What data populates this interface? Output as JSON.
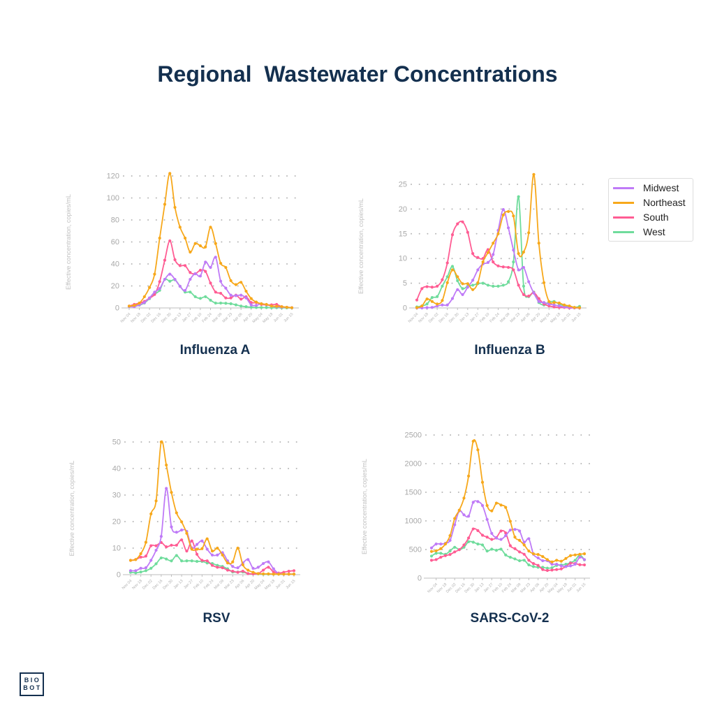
{
  "title": "Regional  Wastewater Concentrations",
  "logo": {
    "line1": "BIO",
    "line2": "BOT"
  },
  "legend": [
    {
      "name": "Midwest",
      "color": "#bf7af7"
    },
    {
      "name": "Northeast",
      "color": "#f7a81b"
    },
    {
      "name": "South",
      "color": "#ff5c93"
    },
    {
      "name": "West",
      "color": "#6fdc9c"
    }
  ],
  "chart_data": [
    {
      "type": "line",
      "title": "Influenza A",
      "ylabel": "Effective concentration, copies/mL",
      "ylim": [
        0,
        120
      ],
      "yticks": [
        0,
        20,
        40,
        60,
        80,
        100,
        120
      ],
      "grid": "horizontal dotted",
      "xticks": [
        "Nov 04",
        "Nov 18",
        "Dec 02",
        "Dec 16",
        "Dec 30",
        "Jan 13",
        "Jan 27",
        "Feb 10",
        "Feb 24",
        "Mar 09",
        "Mar 23",
        "Apr 06",
        "Apr 20",
        "May 04",
        "May 18",
        "Jun 01",
        "Jun 15"
      ],
      "x": [
        "Nov 04",
        "Nov 11",
        "Nov 18",
        "Nov 25",
        "Dec 02",
        "Dec 09",
        "Dec 16",
        "Dec 23",
        "Dec 30",
        "Jan 06",
        "Jan 13",
        "Jan 20",
        "Jan 27",
        "Feb 03",
        "Feb 10",
        "Feb 17",
        "Feb 24",
        "Mar 02",
        "Mar 09",
        "Mar 16",
        "Mar 23",
        "Mar 30",
        "Apr 06",
        "Apr 13",
        "Apr 20",
        "Apr 27",
        "May 04",
        "May 11",
        "May 18",
        "May 25",
        "Jun 01",
        "Jun 08",
        "Jun 15"
      ],
      "series": [
        {
          "name": "Midwest",
          "values": [
            1.3,
            1.1,
            2.8,
            4.9,
            9.1,
            14.4,
            17.6,
            26,
            30.7,
            26,
            19.7,
            15.9,
            26,
            31.1,
            29,
            41.7,
            36.8,
            46.1,
            24.3,
            18,
            11.6,
            11.2,
            11.6,
            9.1,
            2.8,
            2.3,
            3.8,
            2.8,
            1.7,
            1.1,
            0.6,
            0.6,
            0.2
          ]
        },
        {
          "name": "Northeast",
          "values": [
            1.7,
            2.3,
            4.4,
            10.2,
            18.6,
            30.7,
            63.5,
            94.2,
            122.3,
            91.4,
            73.4,
            63.5,
            50.8,
            58.6,
            56.5,
            55.5,
            73.4,
            58.6,
            40.6,
            36.8,
            24.8,
            21.2,
            23.3,
            15.2,
            8.5,
            5.3,
            3.8,
            3.2,
            1.7,
            1.5,
            1.1,
            0.6,
            0.2
          ]
        },
        {
          "name": "South",
          "values": [
            1.7,
            3.2,
            4.4,
            5.9,
            9.1,
            12.3,
            23.9,
            43.4,
            61,
            43.8,
            38.5,
            38.5,
            32.2,
            31.1,
            34.3,
            33.2,
            22.6,
            14.4,
            13.3,
            9.1,
            9.1,
            11.6,
            8,
            10.2,
            4.9,
            4.9,
            3.2,
            2.8,
            2.8,
            3.2,
            1.1,
            0.6,
            0.2
          ]
        },
        {
          "name": "West",
          "values": [
            1.3,
            1.5,
            2.5,
            4.5,
            8.5,
            12.5,
            16,
            26,
            24.3,
            25.6,
            19.7,
            14.4,
            14.4,
            10.2,
            8.7,
            10.2,
            7,
            4.4,
            4.4,
            4.2,
            3.8,
            2.8,
            1.7,
            1.1,
            0.6,
            0.4,
            0.4,
            0.3,
            0.2,
            0.2,
            0.1,
            0.1,
            0
          ]
        }
      ]
    },
    {
      "type": "line",
      "title": "Influenza B",
      "ylabel": "Effective concentration, copies/mL",
      "ylim": [
        0,
        25
      ],
      "yticks": [
        0,
        5,
        10,
        15,
        20,
        25
      ],
      "grid": "horizontal dotted",
      "xticks": [
        "Nov 04",
        "Nov 18",
        "Dec 02",
        "Dec 16",
        "Dec 30",
        "Jan 13",
        "Jan 27",
        "Feb 10",
        "Feb 24",
        "Mar 09",
        "Mar 23",
        "Apr 06",
        "Apr 20",
        "May 04",
        "May 18",
        "Jun 01",
        "Jun 15"
      ],
      "x": [
        "Nov 04",
        "Nov 11",
        "Nov 18",
        "Nov 25",
        "Dec 02",
        "Dec 09",
        "Dec 16",
        "Dec 23",
        "Dec 30",
        "Jan 06",
        "Jan 13",
        "Jan 20",
        "Jan 27",
        "Feb 03",
        "Feb 10",
        "Feb 17",
        "Feb 24",
        "Mar 02",
        "Mar 09",
        "Mar 16",
        "Mar 23",
        "Mar 30",
        "Apr 06",
        "Apr 13",
        "Apr 20",
        "Apr 27",
        "May 04",
        "May 11",
        "May 18",
        "May 25",
        "Jun 01",
        "Jun 08",
        "Jun 15"
      ],
      "series": [
        {
          "name": "Midwest",
          "values": [
            0,
            0,
            0.05,
            0.1,
            0.4,
            0.6,
            0.6,
            1.9,
            3.7,
            2.7,
            4.2,
            5.6,
            7.7,
            8.9,
            9.2,
            10.8,
            15.7,
            19.9,
            16.2,
            11.7,
            7.7,
            8.2,
            5.3,
            3,
            1.3,
            1.1,
            0.8,
            0.6,
            0.4,
            0.2,
            0.1,
            0.05,
            0
          ]
        },
        {
          "name": "Northeast",
          "values": [
            0.05,
            0.4,
            1.8,
            1.3,
            0.8,
            1.5,
            5.1,
            7.7,
            6.3,
            4.9,
            4.9,
            3.7,
            5.1,
            9.3,
            11.2,
            13.1,
            15,
            18.8,
            19.5,
            18.6,
            11,
            11.3,
            15.2,
            27,
            13.1,
            5.1,
            1.3,
            1.1,
            1,
            0.6,
            0.4,
            0.1,
            0.05
          ]
        },
        {
          "name": "South",
          "values": [
            1.6,
            3.9,
            4.3,
            4.2,
            4.4,
            5.7,
            9.1,
            14.8,
            17,
            17.4,
            15.3,
            11,
            10.2,
            10,
            11.8,
            9.3,
            8.5,
            8.3,
            8.2,
            7.7,
            4.6,
            2.7,
            2.4,
            3.1,
            1.9,
            0.8,
            0.4,
            0.2,
            0.1,
            0.1,
            0,
            0,
            0
          ]
        },
        {
          "name": "West",
          "values": [
            0.2,
            0.4,
            0.8,
            2.1,
            2.3,
            4.4,
            6.3,
            8.4,
            5.5,
            3.9,
            4.4,
            4.6,
            4.9,
            5,
            4.6,
            4.4,
            4.4,
            4.6,
            5.3,
            9.3,
            22.5,
            4.4,
            2.3,
            3.2,
            1.1,
            0.6,
            1.2,
            1.3,
            0.8,
            0.4,
            0.2,
            0.1,
            0.3
          ]
        }
      ]
    },
    {
      "type": "line",
      "title": "RSV",
      "ylabel": "Effective concentration, copies/mL",
      "ylim": [
        0,
        50
      ],
      "yticks": [
        0,
        10,
        20,
        30,
        40,
        50
      ],
      "grid": "horizontal dotted",
      "xticks": [
        "Nov 04",
        "Nov 18",
        "Dec 02",
        "Dec 16",
        "Dec 30",
        "Jan 13",
        "Jan 27",
        "Feb 10",
        "Feb 24",
        "Mar 09",
        "Mar 23",
        "Apr 06",
        "Apr 20",
        "May 04",
        "May 18",
        "Jun 01",
        "Jun 15"
      ],
      "x": [
        "Nov 04",
        "Nov 11",
        "Nov 18",
        "Nov 25",
        "Dec 02",
        "Dec 09",
        "Dec 16",
        "Dec 23",
        "Dec 30",
        "Jan 06",
        "Jan 13",
        "Jan 20",
        "Jan 27",
        "Feb 03",
        "Feb 10",
        "Feb 17",
        "Feb 24",
        "Mar 02",
        "Mar 09",
        "Mar 16",
        "Mar 23",
        "Mar 30",
        "Apr 06",
        "Apr 13",
        "Apr 20",
        "Apr 27",
        "May 04",
        "May 11",
        "May 18",
        "May 25",
        "Jun 01",
        "Jun 08",
        "Jun 15"
      ],
      "series": [
        {
          "name": "Midwest",
          "values": [
            1.5,
            1.5,
            2.4,
            2.6,
            5.4,
            9.2,
            14.4,
            32.5,
            18,
            16,
            16.8,
            16.3,
            10.1,
            11.4,
            12.7,
            9.6,
            7.4,
            7.4,
            8.3,
            5.2,
            3.1,
            2.6,
            4.4,
            5.7,
            2.4,
            2.8,
            4.2,
            4.8,
            2.2,
            0.4,
            0.2,
            0.2,
            0.2
          ]
        },
        {
          "name": "Northeast",
          "values": [
            5.4,
            5.7,
            7.9,
            12.2,
            22.9,
            27.8,
            50,
            41.3,
            31,
            23.3,
            19.9,
            15.6,
            9.6,
            9.6,
            9.8,
            13.5,
            8.9,
            10,
            7.4,
            4.4,
            4.8,
            10,
            3.7,
            1.7,
            0.9,
            0.4,
            0.3,
            0.3,
            0.2,
            0.2,
            0.2,
            0.2,
            0.2
          ]
        },
        {
          "name": "South",
          "values": [
            5.4,
            5.7,
            6.6,
            7,
            10.9,
            10.9,
            12.1,
            10.5,
            11.1,
            11.1,
            13.1,
            8.9,
            12.7,
            7.7,
            5.4,
            5.2,
            3.5,
            2.8,
            2.6,
            1.7,
            1.3,
            0.9,
            1.3,
            0.4,
            0.3,
            0.4,
            1.7,
            2.8,
            1,
            0.6,
            0.9,
            1.3,
            1.5
          ]
        },
        {
          "name": "West",
          "values": [
            0.9,
            0.7,
            1,
            1.5,
            2.4,
            4.1,
            6.3,
            5.9,
            5.2,
            7.2,
            5.2,
            5.2,
            5.2,
            5,
            5,
            4.4,
            4.2,
            3.5,
            3.1,
            2.2,
            1,
            1,
            1,
            0.4,
            0.3,
            0.3,
            0.2,
            0.2,
            0.2,
            0.2,
            0.2,
            0.2,
            0.2
          ]
        }
      ]
    },
    {
      "type": "line",
      "title": "SARS-CoV-2",
      "ylabel": "Effective concentration, copies/mL",
      "ylim": [
        0,
        2500
      ],
      "yticks": [
        0,
        500,
        1000,
        1500,
        2000,
        2500
      ],
      "grid": "horizontal dotted",
      "xticks": [
        "Nov 04",
        "Nov 18",
        "Dec 02",
        "Dec 16",
        "Dec 30",
        "Jan 13",
        "Jan 27",
        "Feb 10",
        "Feb 24",
        "Mar 09",
        "Mar 23",
        "Apr 06",
        "Apr 20",
        "May 04",
        "May 18",
        "Jun 01",
        "Jun 15"
      ],
      "x": [
        "Oct 28",
        "Nov 04",
        "Nov 11",
        "Nov 18",
        "Nov 25",
        "Dec 02",
        "Dec 09",
        "Dec 16",
        "Dec 23",
        "Dec 30",
        "Jan 06",
        "Jan 13",
        "Jan 20",
        "Jan 27",
        "Feb 03",
        "Feb 10",
        "Feb 17",
        "Feb 24",
        "Mar 02",
        "Mar 09",
        "Mar 16",
        "Mar 23",
        "Mar 30",
        "Apr 06",
        "Apr 13",
        "Apr 20",
        "Apr 27",
        "May 04",
        "May 11",
        "May 18",
        "May 25",
        "Jun 01",
        "Jun 08",
        "Jun 15"
      ],
      "series": [
        {
          "name": "Midwest",
          "values": [
            527,
            596,
            596,
            608,
            660,
            932,
            1175,
            1106,
            1082,
            1325,
            1337,
            1268,
            1025,
            782,
            701,
            677,
            742,
            839,
            851,
            823,
            628,
            689,
            418,
            353,
            304,
            304,
            243,
            243,
            215,
            203,
            215,
            243,
            365,
            324
          ]
        },
        {
          "name": "Northeast",
          "values": [
            466,
            478,
            515,
            596,
            742,
            1042,
            1188,
            1398,
            1783,
            2391,
            2241,
            1674,
            1268,
            1175,
            1309,
            1276,
            1236,
            993,
            717,
            660,
            579,
            474,
            425,
            413,
            377,
            324,
            284,
            312,
            296,
            344,
            393,
            405,
            417,
            425
          ]
        },
        {
          "name": "South",
          "values": [
            312,
            324,
            365,
            393,
            413,
            458,
            498,
            579,
            701,
            859,
            831,
            750,
            717,
            677,
            709,
            823,
            790,
            567,
            515,
            458,
            417,
            312,
            255,
            223,
            150,
            134,
            142,
            150,
            162,
            203,
            263,
            255,
            235,
            231
          ]
        },
        {
          "name": "West",
          "values": [
            385,
            434,
            434,
            417,
            474,
            539,
            498,
            539,
            636,
            628,
            596,
            579,
            474,
            506,
            486,
            506,
            405,
            365,
            336,
            304,
            312,
            231,
            203,
            190,
            190,
            174,
            182,
            223,
            231,
            243,
            271,
            312,
            405,
            320
          ]
        }
      ]
    }
  ]
}
